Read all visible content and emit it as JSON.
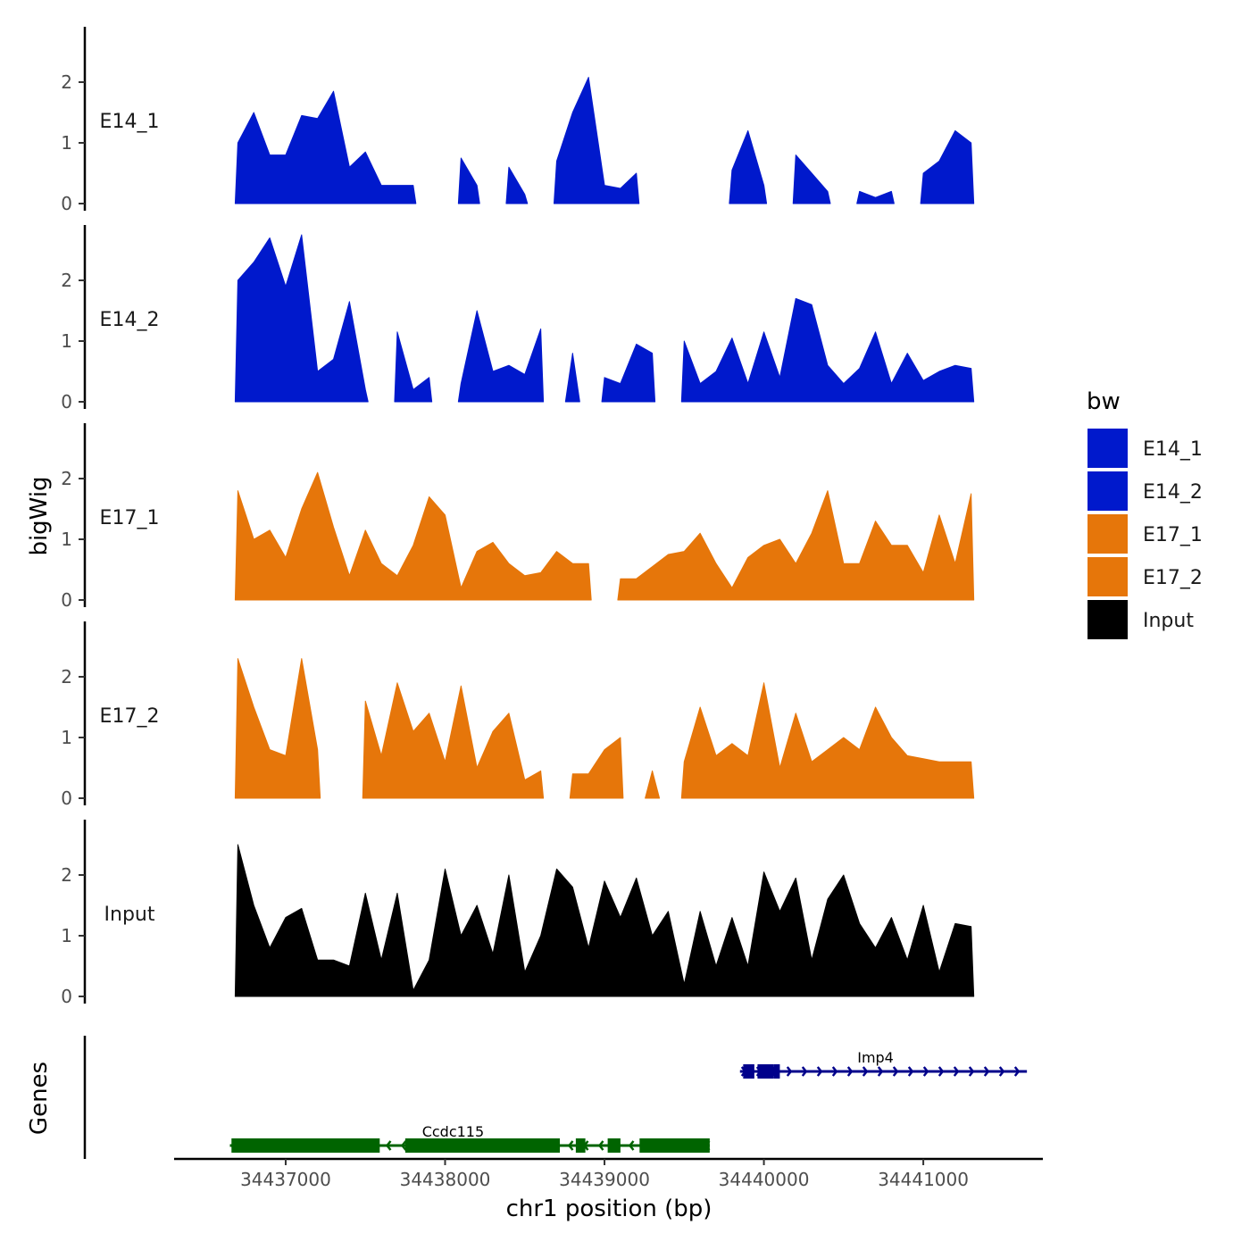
{
  "chart_data": {
    "type": "area",
    "title": "",
    "xlabel": "chr1 position (bp)",
    "ylabel": "bigWig",
    "genes_label": "Genes",
    "xlim": [
      34436300,
      34441750
    ],
    "ylim": [
      0,
      2.85
    ],
    "x_ticks": [
      34437000,
      34438000,
      34439000,
      34440000,
      34441000
    ],
    "x_tick_labels": [
      "34437000",
      "34438000",
      "34439000",
      "34440000",
      "34441000"
    ],
    "y_ticks": [
      0,
      1,
      2
    ],
    "y_tick_labels": [
      "0",
      "1",
      "2"
    ],
    "legend": {
      "title": "bw",
      "placement": "right",
      "entries": [
        {
          "name": "E14_1",
          "color": "#0019CC"
        },
        {
          "name": "E14_2",
          "color": "#0019CC"
        },
        {
          "name": "E17_1",
          "color": "#E6760A"
        },
        {
          "name": "E17_2",
          "color": "#E6760A"
        },
        {
          "name": "Input",
          "color": "#000000"
        }
      ]
    },
    "series": [
      {
        "name": "E14_1",
        "color": "#0019CC",
        "x_start": 34436700,
        "x_step": 100,
        "values": [
          1.0,
          1.5,
          0.8,
          0.8,
          1.45,
          1.4,
          1.85,
          0.6,
          0.85,
          0.3,
          0.3,
          0.3,
          null,
          null,
          0.75,
          0.3,
          null,
          0.6,
          0.15,
          null,
          0.7,
          1.5,
          2.08,
          0.3,
          0.25,
          0.5,
          null,
          null,
          null,
          null,
          null,
          0.55,
          1.2,
          0.3,
          null,
          0.8,
          0.5,
          0.2,
          null,
          0.2,
          0.1,
          0.2,
          null,
          0.5,
          0.7,
          1.2,
          1.0
        ]
      },
      {
        "name": "E14_2",
        "color": "#0019CC",
        "x_start": 34436700,
        "x_step": 100,
        "values": [
          2.0,
          2.3,
          2.7,
          1.9,
          2.75,
          0.5,
          0.7,
          1.65,
          0.2,
          null,
          1.15,
          0.2,
          0.4,
          null,
          0.3,
          1.5,
          0.5,
          0.6,
          0.45,
          1.2,
          null,
          0.8,
          null,
          0.4,
          0.3,
          0.95,
          0.8,
          null,
          1.0,
          0.3,
          0.5,
          1.05,
          0.3,
          1.15,
          0.4,
          1.7,
          1.6,
          0.6,
          0.3,
          0.55,
          1.15,
          0.3,
          0.8,
          0.35,
          0.5,
          0.6,
          0.55
        ]
      },
      {
        "name": "E17_1",
        "color": "#E6760A",
        "x_start": 34436700,
        "x_step": 100,
        "values": [
          1.8,
          1.0,
          1.15,
          0.7,
          1.5,
          2.1,
          1.2,
          0.4,
          1.15,
          0.6,
          0.4,
          0.9,
          1.7,
          1.4,
          0.2,
          0.8,
          0.95,
          0.6,
          0.4,
          0.45,
          0.8,
          0.6,
          0.6,
          null,
          0.35,
          0.35,
          0.55,
          0.75,
          0.8,
          1.1,
          0.6,
          0.2,
          0.7,
          0.9,
          1.0,
          0.6,
          1.1,
          1.8,
          0.6,
          0.6,
          1.3,
          0.9,
          0.9,
          0.45,
          1.4,
          0.6,
          1.75
        ]
      },
      {
        "name": "E17_2",
        "color": "#E6760A",
        "x_start": 34436700,
        "x_step": 100,
        "values": [
          2.3,
          1.5,
          0.8,
          0.7,
          2.3,
          0.8,
          null,
          null,
          1.6,
          0.7,
          1.9,
          1.1,
          1.4,
          0.6,
          1.85,
          0.5,
          1.1,
          1.4,
          0.3,
          0.45,
          null,
          0.4,
          0.4,
          0.8,
          1.0,
          null,
          0.45,
          null,
          0.6,
          1.5,
          0.7,
          0.9,
          0.7,
          1.9,
          0.5,
          1.4,
          0.6,
          0.8,
          1.0,
          0.8,
          1.5,
          1.0,
          0.7,
          0.65,
          0.6,
          0.6,
          0.6
        ]
      },
      {
        "name": "Input",
        "color": "#000000",
        "x_start": 34436700,
        "x_step": 100,
        "values": [
          2.5,
          1.5,
          0.8,
          1.3,
          1.45,
          0.6,
          0.6,
          0.5,
          1.7,
          0.6,
          1.7,
          0.1,
          0.6,
          2.1,
          1.0,
          1.5,
          0.7,
          2.0,
          0.4,
          1.0,
          2.1,
          1.8,
          0.8,
          1.9,
          1.3,
          1.95,
          1.0,
          1.4,
          0.2,
          1.4,
          0.5,
          1.3,
          0.5,
          2.05,
          1.4,
          1.95,
          0.6,
          1.6,
          2.0,
          1.2,
          0.8,
          1.3,
          0.6,
          1.5,
          0.4,
          1.2,
          1.15
        ]
      }
    ],
    "genes": [
      {
        "name": "Imp4",
        "strand": "+",
        "color": "#00008B",
        "start": 34439850,
        "end": 34441650,
        "exons": [
          [
            34439870,
            34439940
          ],
          [
            34439960,
            34440060
          ],
          [
            34440060,
            34440100
          ]
        ],
        "row": 1
      },
      {
        "name": "Ccdc115",
        "strand": "-",
        "color": "#006400",
        "start": 34436650,
        "end": 34439660,
        "exons": [
          [
            34436660,
            34437590
          ],
          [
            34437750,
            34438720
          ],
          [
            34438820,
            34438880
          ],
          [
            34439020,
            34439100
          ],
          [
            34439220,
            34439660
          ]
        ],
        "row": 2
      }
    ]
  }
}
